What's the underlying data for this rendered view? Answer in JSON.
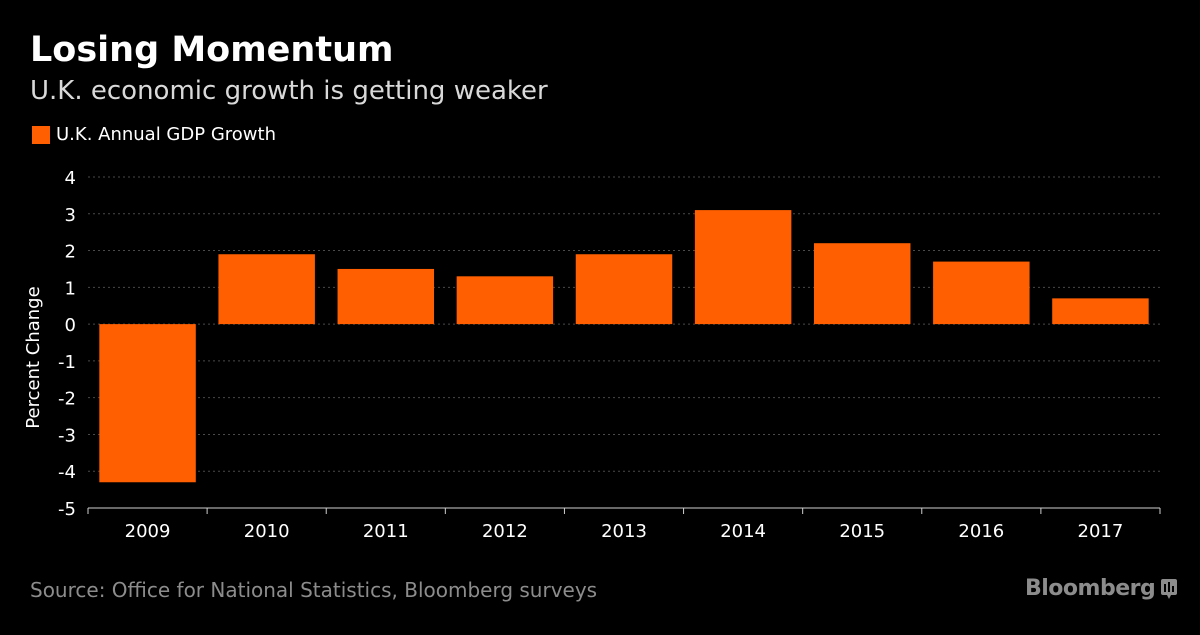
{
  "header": {
    "title": "Losing Momentum",
    "subtitle": "U.K. economic growth is getting weaker"
  },
  "footer": {
    "source": "Source: Office for National Statistics, Bloomberg surveys",
    "brand": "Bloomberg"
  },
  "colors": {
    "bar": "#ff5f00",
    "grid": "#4a4a4a",
    "axis": "#cfcfcf",
    "text": "#ffffff",
    "muted": "#8c8c8c"
  },
  "chart_data": {
    "type": "bar",
    "title": "Losing Momentum",
    "subtitle": "U.K. economic growth is getting weaker",
    "xlabel": "",
    "ylabel": "Percent Change",
    "categories": [
      "2009",
      "2010",
      "2011",
      "2012",
      "2013",
      "2014",
      "2015",
      "2016",
      "2017"
    ],
    "series": [
      {
        "name": "U.K. Annual GDP Growth",
        "values": [
          -4.3,
          1.9,
          1.5,
          1.3,
          1.9,
          3.1,
          2.2,
          1.7,
          0.7
        ]
      }
    ],
    "ylim": [
      -5,
      4
    ],
    "yticks": [
      "4",
      "3",
      "2",
      "1",
      "0",
      "-1",
      "-2",
      "-3",
      "-4",
      "-5"
    ],
    "grid": true,
    "legend_position": "top-left"
  }
}
